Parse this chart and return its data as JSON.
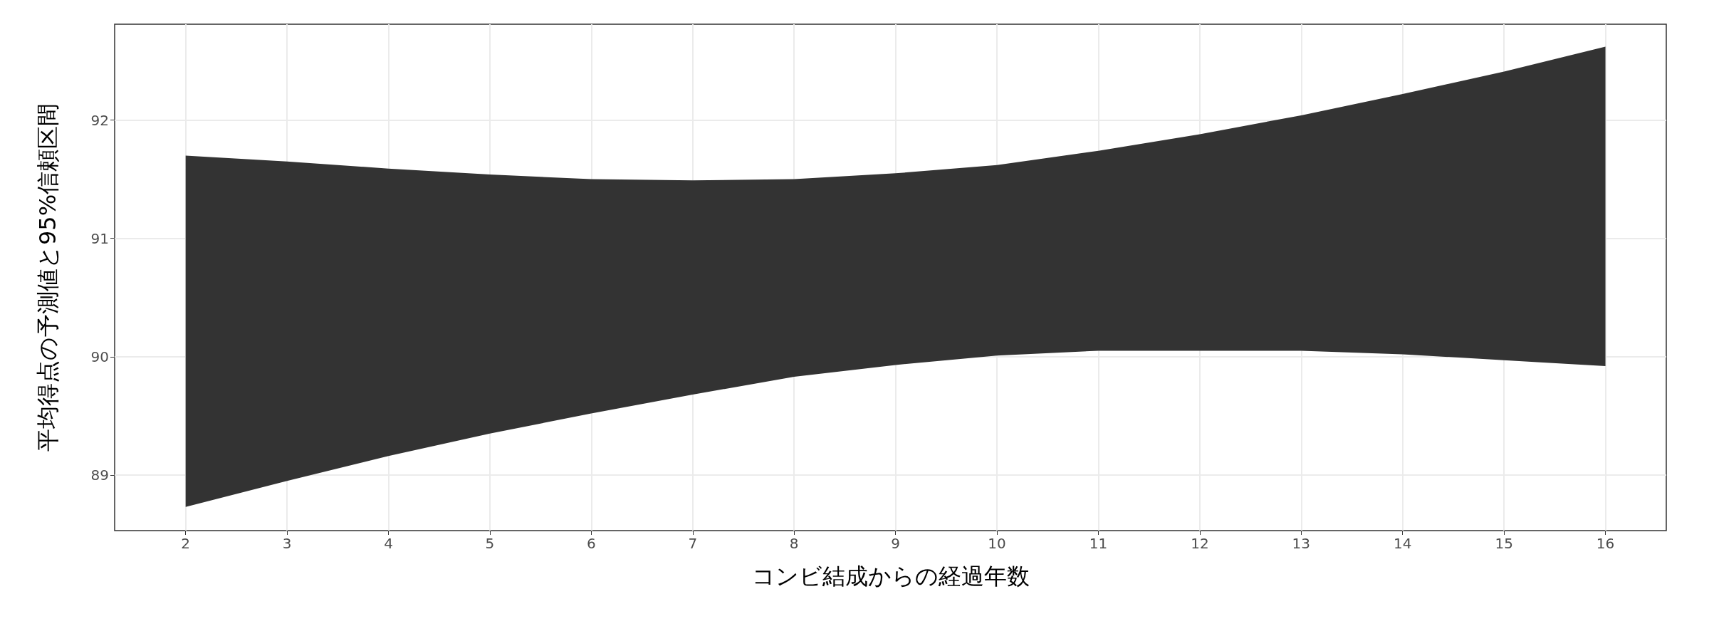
{
  "chart_data": {
    "type": "area",
    "xlabel": "コンビ結成からの経過年数",
    "ylabel": "平均得点の予測値と95%信頼区間",
    "x": [
      2,
      3,
      4,
      5,
      6,
      7,
      8,
      9,
      10,
      11,
      12,
      13,
      14,
      15,
      16
    ],
    "series": [
      {
        "color": "#333333",
        "values": [
          null,
          null,
          null,
          null,
          null,
          null,
          null,
          null,
          null,
          null,
          null,
          null,
          null,
          null,
          null
        ],
        "lower": [
          88.73,
          88.95,
          89.16,
          89.35,
          89.52,
          89.68,
          89.83,
          89.93,
          90.01,
          90.05,
          90.05,
          90.05,
          90.02,
          89.97,
          89.92
        ],
        "upper": [
          91.7,
          91.65,
          91.59,
          91.54,
          91.5,
          91.49,
          91.5,
          91.55,
          91.62,
          91.74,
          91.88,
          92.04,
          92.22,
          92.41,
          92.62
        ]
      }
    ],
    "xlim": [
      1.3,
      16.6
    ],
    "xticks": [
      2,
      3,
      4,
      5,
      6,
      7,
      8,
      9,
      10,
      11,
      12,
      13,
      14,
      15,
      16
    ],
    "ylim": [
      88.53,
      92.81
    ],
    "yticks": [
      89,
      90,
      91,
      92
    ],
    "grid": true
  }
}
